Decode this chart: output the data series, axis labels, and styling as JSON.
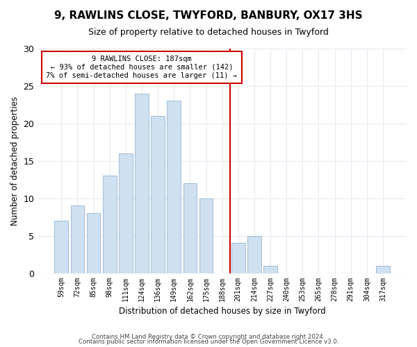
{
  "title": "9, RAWLINS CLOSE, TWYFORD, BANBURY, OX17 3HS",
  "subtitle": "Size of property relative to detached houses in Twyford",
  "xlabel": "Distribution of detached houses by size in Twyford",
  "ylabel": "Number of detached properties",
  "bar_labels": [
    "59sqm",
    "72sqm",
    "85sqm",
    "98sqm",
    "111sqm",
    "124sqm",
    "136sqm",
    "149sqm",
    "162sqm",
    "175sqm",
    "188sqm",
    "201sqm",
    "214sqm",
    "227sqm",
    "240sqm",
    "253sqm",
    "265sqm",
    "278sqm",
    "291sqm",
    "304sqm",
    "317sqm"
  ],
  "bar_values": [
    7,
    9,
    8,
    13,
    16,
    24,
    21,
    23,
    12,
    10,
    0,
    4,
    5,
    1,
    0,
    0,
    0,
    0,
    0,
    0,
    1
  ],
  "bar_color": "#cfe0f0",
  "bar_edgecolor": "#a0bdd8",
  "vline_x_index": 10,
  "vline_color": "#cc0000",
  "annotation_title": "9 RAWLINS CLOSE: 187sqm",
  "annotation_line1": "← 93% of detached houses are smaller (142)",
  "annotation_line2": "7% of semi-detached houses are larger (11) →",
  "annotation_box_color": "#cc0000",
  "ylim": [
    0,
    30
  ],
  "yticks": [
    0,
    5,
    10,
    15,
    20,
    25,
    30
  ],
  "footer1": "Contains HM Land Registry data © Crown copyright and database right 2024.",
  "footer2": "Contains public sector information licensed under the Open Government Licence v3.0.",
  "background_color": "#ffffff",
  "grid_color": "#e8e8f0"
}
